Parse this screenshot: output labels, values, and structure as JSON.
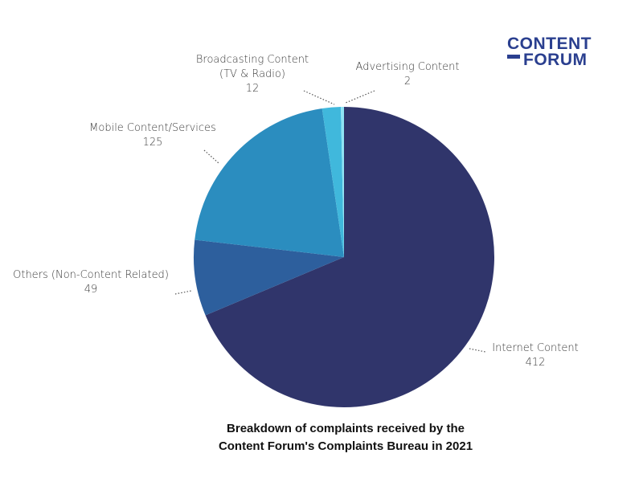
{
  "logo": {
    "line1": "CONTENT",
    "line2": "FORUM",
    "color": "#2a3f8f"
  },
  "chart_data": {
    "type": "pie",
    "title_lines": [
      "Breakdown of complaints received by the",
      "Content Forum's Complaints Bureau in 2021"
    ],
    "slices": [
      {
        "label_lines": [
          "Internet Content"
        ],
        "value": 412,
        "color": "#30356b"
      },
      {
        "label_lines": [
          "Others (Non-Content Related)"
        ],
        "value": 49,
        "color": "#2d5f9d"
      },
      {
        "label_lines": [
          "Mobile Content/Services"
        ],
        "value": 125,
        "color": "#2b8dbf"
      },
      {
        "label_lines": [
          "Broadcasting Content",
          "(TV & Radio)"
        ],
        "value": 12,
        "color": "#40b8dc"
      },
      {
        "label_lines": [
          "Advertising Content"
        ],
        "value": 2,
        "color": "#8fe4f4"
      }
    ]
  }
}
